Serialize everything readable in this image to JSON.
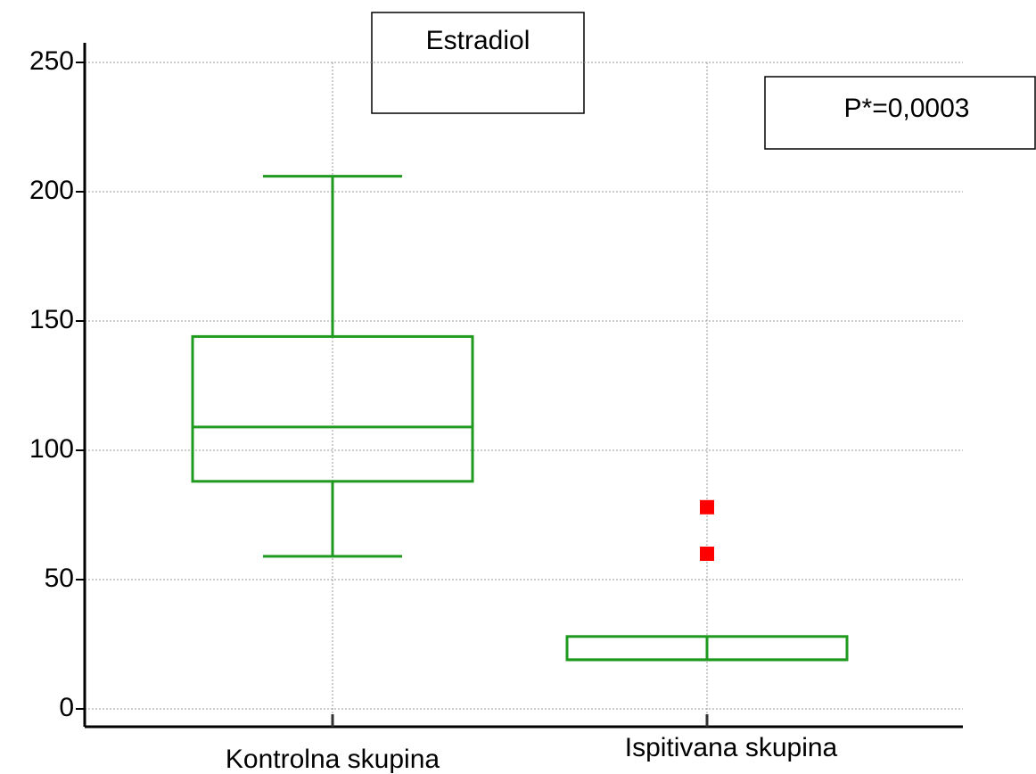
{
  "chart_data": {
    "type": "box",
    "title": "Estradiol",
    "annotation": "P*=0,0003",
    "categories": [
      "Kontrolna skupina",
      "Ispitivana skupina"
    ],
    "boxes": [
      {
        "whislo": 59,
        "q1": 88,
        "med": 109,
        "q3": 144,
        "whishi": 206,
        "fliers": []
      },
      {
        "whislo": 19,
        "q1": 19,
        "med": 19,
        "q3": 28,
        "whishi": 28,
        "fliers": [
          78,
          60
        ]
      }
    ],
    "color": "#1f9a1f",
    "flier_color": "#ff0000",
    "ylim": [
      0,
      250
    ],
    "yticks": [
      0,
      50,
      100,
      150,
      200,
      250
    ],
    "grid": true
  }
}
